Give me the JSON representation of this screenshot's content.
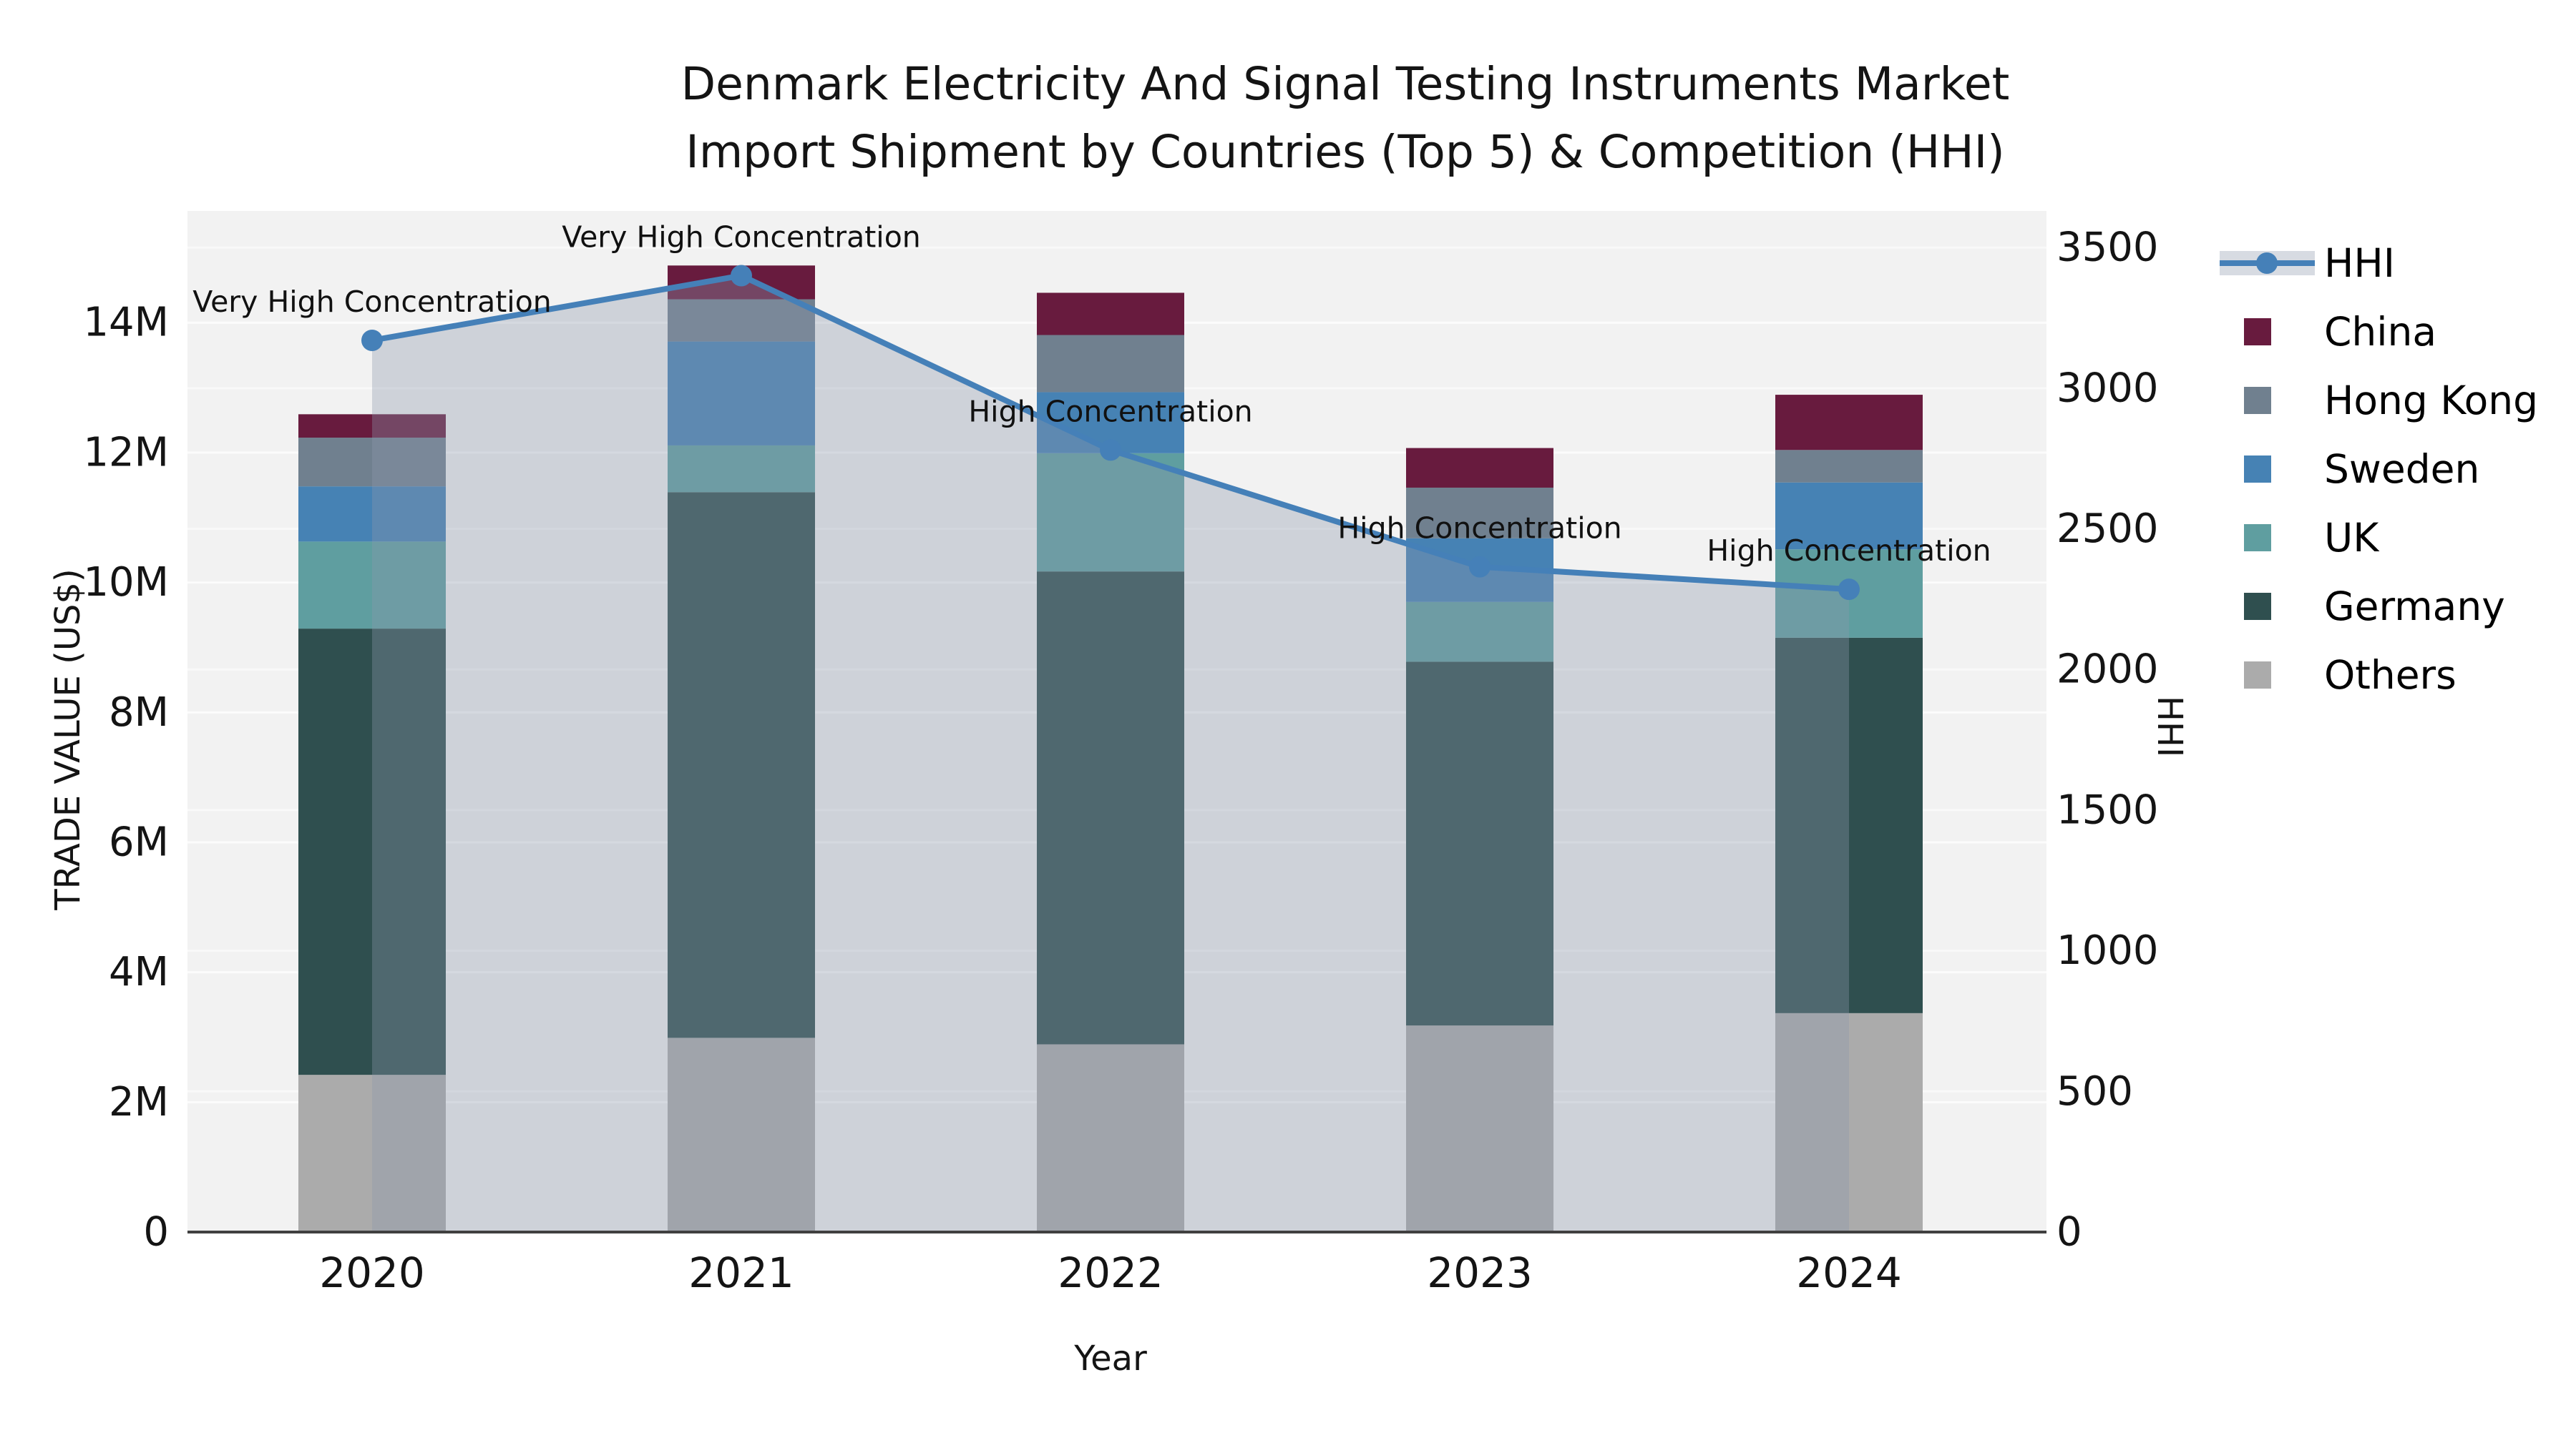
{
  "title": {
    "line1": "Denmark Electricity And Signal Testing Instruments Market",
    "line2": "Import Shipment by Countries (Top 5) & Competition (HHI)"
  },
  "chart_data": {
    "type": "combo-stacked-bar-with-line-area",
    "unit_bars": "million US$",
    "categories": [
      "2020",
      "2021",
      "2022",
      "2023",
      "2024"
    ],
    "bar_series": [
      {
        "name": "Others",
        "color": "#ababab",
        "values": [
          2.42,
          2.99,
          2.89,
          3.18,
          3.37
        ]
      },
      {
        "name": "Germany",
        "color": "#2f4f4f",
        "values": [
          6.87,
          8.4,
          7.28,
          5.6,
          5.78
        ]
      },
      {
        "name": "UK",
        "color": "#5f9ea0",
        "values": [
          1.34,
          0.72,
          1.82,
          0.92,
          1.36
        ]
      },
      {
        "name": "Sweden",
        "color": "#4682b4",
        "values": [
          0.85,
          1.6,
          0.94,
          0.98,
          1.03
        ]
      },
      {
        "name": "Hong Kong",
        "color": "#70808f",
        "values": [
          0.75,
          0.65,
          0.88,
          0.78,
          0.5
        ]
      },
      {
        "name": "China",
        "color": "#681b3e",
        "values": [
          0.36,
          0.52,
          0.65,
          0.61,
          0.85
        ]
      }
    ],
    "bar_totals": [
      12.59,
      14.88,
      14.46,
      12.07,
      12.89
    ],
    "line_series": {
      "name": "HHI",
      "color": "#4580b8",
      "area_color": "rgba(140,152,172,0.35)",
      "values": [
        3170,
        3400,
        2780,
        2365,
        2285
      ]
    },
    "annotations": [
      "Very High Concentration",
      "Very High Concentration",
      "High Concentration",
      "High Concentration",
      "High Concentration"
    ],
    "y_left": {
      "title": "TRADE VALUE (US$)",
      "tick_labels": [
        "0",
        "2M",
        "4M",
        "6M",
        "8M",
        "10M",
        "12M",
        "14M"
      ],
      "tick_values": [
        0,
        2,
        4,
        6,
        8,
        10,
        12,
        14
      ],
      "axis_max": 15.72
    },
    "y_right": {
      "title": "HHI",
      "tick_labels": [
        "0",
        "500",
        "1000",
        "1500",
        "2000",
        "2500",
        "3000",
        "3500"
      ],
      "tick_values": [
        0,
        500,
        1000,
        1500,
        2000,
        2500,
        3000,
        3500
      ],
      "axis_max": 3630
    },
    "x_axis": {
      "title": "Year"
    },
    "legend": {
      "items": [
        {
          "label": "HHI",
          "type": "line"
        },
        {
          "label": "China",
          "type": "swatch"
        },
        {
          "label": "Hong Kong",
          "type": "swatch"
        },
        {
          "label": "Sweden",
          "type": "swatch"
        },
        {
          "label": "UK",
          "type": "swatch"
        },
        {
          "label": "Germany",
          "type": "swatch"
        },
        {
          "label": "Others",
          "type": "swatch"
        }
      ]
    },
    "style": {
      "plot_bg": "#f2f2f2",
      "grid_color": "#ffffff",
      "axis_line_color": "#404040",
      "text_color": "#141414"
    }
  }
}
